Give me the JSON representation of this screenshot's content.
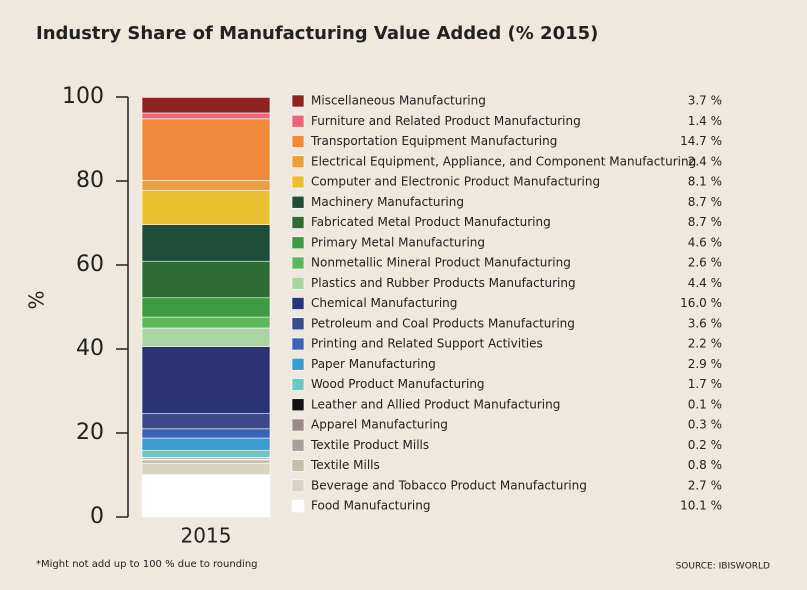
{
  "chart_data": {
    "type": "bar",
    "stacked": true,
    "title": "Industry Share of Manufacturing Value Added (% 2015)",
    "y_label": "%",
    "categories": [
      "2015"
    ],
    "ylim": [
      0,
      100
    ],
    "yticks": [
      0,
      20,
      40,
      60,
      80,
      100
    ],
    "series": [
      {
        "name": "Miscellaneous Manufacturing",
        "color": "#8b2323",
        "values": [
          3.7
        ],
        "value_labels": [
          "3.7 %"
        ]
      },
      {
        "name": "Furniture and Related Product Manufacturing",
        "color": "#e8667a",
        "values": [
          1.4
        ],
        "value_labels": [
          "1.4 %"
        ]
      },
      {
        "name": "Transportation Equipment Manufacturing",
        "color": "#f28a3c",
        "values": [
          14.7
        ],
        "value_labels": [
          "14.7 %"
        ]
      },
      {
        "name": "Electrical Equipment, Appliance, and Component Manufacturing",
        "color": "#e9a23b",
        "values": [
          2.4
        ],
        "value_labels": [
          "2.4 %"
        ]
      },
      {
        "name": "Computer and Electronic Product Manufacturing",
        "color": "#e8c031",
        "values": [
          8.1
        ],
        "value_labels": [
          "8.1 %"
        ]
      },
      {
        "name": "Machinery Manufacturing",
        "color": "#1f4d3a",
        "values": [
          8.7
        ],
        "value_labels": [
          "8.7 %"
        ]
      },
      {
        "name": "Fabricated Metal Product Manufacturing",
        "color": "#2f6b35",
        "values": [
          8.7
        ],
        "value_labels": [
          "8.7 %"
        ]
      },
      {
        "name": "Primary Metal Manufacturing",
        "color": "#3f9a43",
        "values": [
          4.6
        ],
        "value_labels": [
          "4.6 %"
        ]
      },
      {
        "name": "Nonmetallic Mineral Product Manufacturing",
        "color": "#5cb85a",
        "values": [
          2.6
        ],
        "value_labels": [
          "2.6 %"
        ]
      },
      {
        "name": "Plastics and Rubber Products Manufacturing",
        "color": "#a8d5a2",
        "values": [
          4.4
        ],
        "value_labels": [
          "4.4 %"
        ]
      },
      {
        "name": "Chemical Manufacturing",
        "color": "#2a3475",
        "values": [
          16.0
        ],
        "value_labels": [
          "16.0 %"
        ]
      },
      {
        "name": "Petroleum and Coal Products Manufacturing",
        "color": "#3a4a8a",
        "values": [
          3.6
        ],
        "value_labels": [
          "3.6 %"
        ]
      },
      {
        "name": "Printing and Related Support Activities",
        "color": "#3d63b8",
        "values": [
          2.2
        ],
        "value_labels": [
          "2.2 %"
        ]
      },
      {
        "name": "Paper Manufacturing",
        "color": "#3d9bd0",
        "values": [
          2.9
        ],
        "value_labels": [
          "2.9 %"
        ]
      },
      {
        "name": "Wood Product Manufacturing",
        "color": "#6cc7c3",
        "values": [
          1.7
        ],
        "value_labels": [
          "1.7 %"
        ]
      },
      {
        "name": "Leather and Allied Product Manufacturing",
        "color": "#111111",
        "values": [
          0.1
        ],
        "value_labels": [
          "0.1 %"
        ]
      },
      {
        "name": "Apparel Manufacturing",
        "color": "#9a8a8a",
        "values": [
          0.3
        ],
        "value_labels": [
          "0.3 %"
        ]
      },
      {
        "name": "Textile Product Mills",
        "color": "#a7a09c",
        "values": [
          0.2
        ],
        "value_labels": [
          "0.2 %"
        ]
      },
      {
        "name": "Textile Mills",
        "color": "#c3bfa9",
        "values": [
          0.8
        ],
        "value_labels": [
          "0.8 %"
        ]
      },
      {
        "name": "Beverage and Tobacco Product Manufacturing",
        "color": "#d9d3c3",
        "values": [
          2.7
        ],
        "value_labels": [
          "2.7 %"
        ]
      },
      {
        "name": "Food Manufacturing",
        "color": "#ffffff",
        "values": [
          10.1
        ],
        "value_labels": [
          "10.1 %"
        ]
      }
    ],
    "footnote": "*Might not add up to 100 % due to rounding",
    "source": "SOURCE: IBISWORLD"
  }
}
